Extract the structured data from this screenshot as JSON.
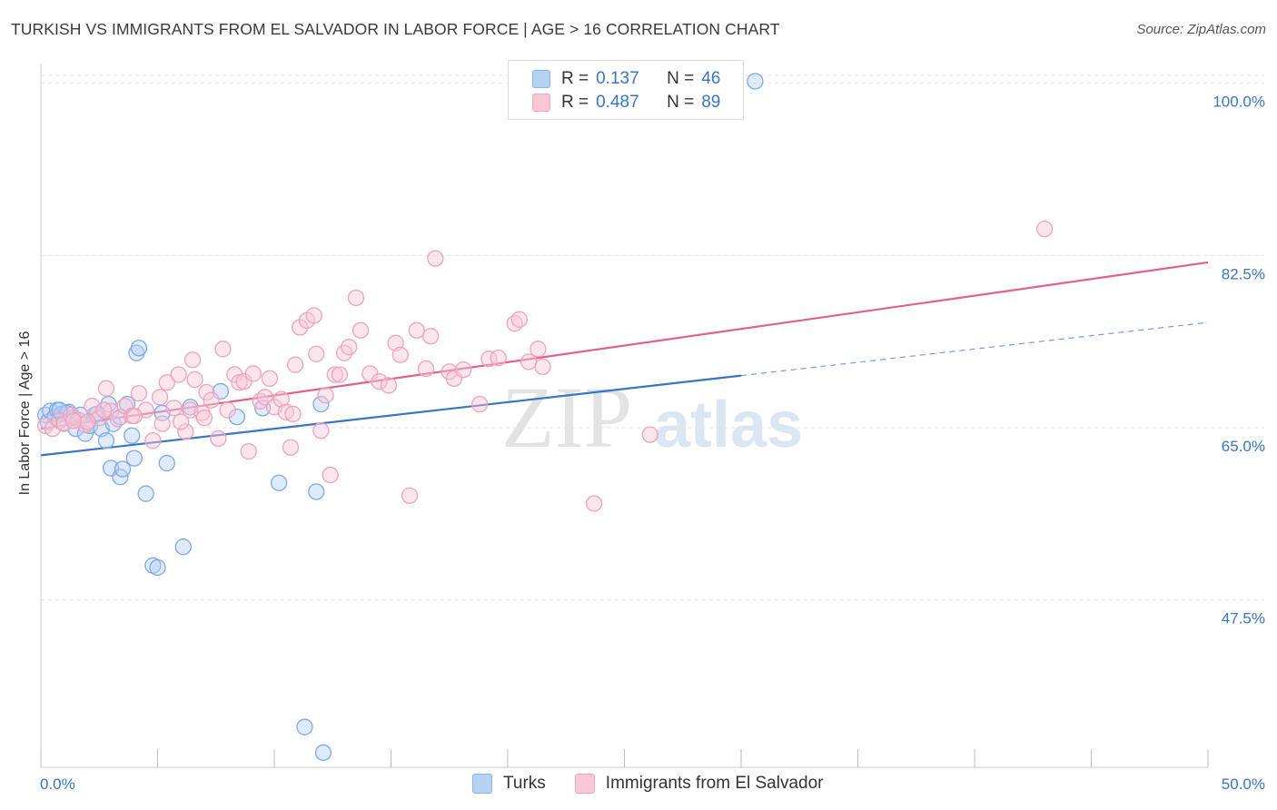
{
  "title": "TURKISH VS IMMIGRANTS FROM EL SALVADOR IN LABOR FORCE | AGE > 16 CORRELATION CHART",
  "source": "Source: ZipAtlas.com",
  "watermark": {
    "zip": "ZIP",
    "atlas": "atlas"
  },
  "legend": {
    "rows": [
      {
        "r_label": "R =",
        "r_value": "0.137",
        "n_label": "N =",
        "n_value": "46",
        "color": "#8ab4ea",
        "fill": "#b7d1f3"
      },
      {
        "r_label": "R =",
        "r_value": "0.487",
        "n_label": "N =",
        "n_value": "89",
        "color": "#f0a3bd",
        "fill": "#f8c8d7"
      }
    ]
  },
  "chart_data": {
    "type": "scatter",
    "title": "TURKISH VS IMMIGRANTS FROM EL SALVADOR IN LABOR FORCE | AGE > 16 CORRELATION CHART",
    "xlabel": "",
    "ylabel": "In Labor Force | Age > 16",
    "xlim": [
      0,
      50
    ],
    "ylim": [
      30.5,
      102
    ],
    "x_tick_labels": [
      "0.0%",
      "50.0%"
    ],
    "y_ticks": [
      47.5,
      65.0,
      82.5,
      100.0
    ],
    "y_tick_labels": [
      "47.5%",
      "65.0%",
      "82.5%",
      "100.0%"
    ],
    "grid": "horizontal dashed",
    "legend_position": "top-center",
    "series": [
      {
        "name": "Turks",
        "color": "#3a74c4",
        "fill": "#b7d1f3",
        "trend": {
          "x": [
            0,
            30
          ],
          "y": [
            62.2,
            70.3
          ],
          "dashed_to": [
            50,
            75.7
          ]
        },
        "points": [
          [
            0.2,
            66.3
          ],
          [
            0.3,
            65.6
          ],
          [
            0.4,
            66.7
          ],
          [
            0.6,
            66.1
          ],
          [
            0.7,
            66.8
          ],
          [
            0.9,
            66.4
          ],
          [
            1.0,
            65.5
          ],
          [
            1.2,
            66.6
          ],
          [
            1.4,
            66.0
          ],
          [
            1.5,
            64.9
          ],
          [
            1.7,
            66.3
          ],
          [
            1.9,
            64.4
          ],
          [
            2.1,
            65.2
          ],
          [
            2.3,
            66.3
          ],
          [
            2.6,
            64.9
          ],
          [
            2.8,
            63.7
          ],
          [
            2.9,
            67.4
          ],
          [
            3.1,
            65.4
          ],
          [
            3.4,
            66.1
          ],
          [
            3.7,
            67.4
          ],
          [
            3.9,
            64.2
          ],
          [
            4.0,
            61.9
          ],
          [
            4.1,
            72.6
          ],
          [
            4.2,
            73.1
          ],
          [
            4.5,
            58.3
          ],
          [
            4.8,
            51.0
          ],
          [
            5.0,
            50.8
          ],
          [
            5.2,
            66.5
          ],
          [
            5.4,
            61.4
          ],
          [
            6.1,
            52.9
          ],
          [
            6.4,
            67.1
          ],
          [
            7.7,
            68.7
          ],
          [
            8.4,
            66.1
          ],
          [
            9.5,
            67.0
          ],
          [
            10.2,
            59.4
          ],
          [
            11.3,
            34.6
          ],
          [
            11.8,
            58.5
          ],
          [
            12.0,
            67.4
          ],
          [
            12.1,
            32.0
          ],
          [
            3.0,
            60.9
          ],
          [
            3.4,
            60.0
          ],
          [
            3.5,
            60.8
          ],
          [
            30.6,
            100.2
          ],
          [
            1.1,
            66.5
          ],
          [
            2.4,
            66.4
          ],
          [
            0.8,
            66.8
          ]
        ]
      },
      {
        "name": "Immigrants from El Salvador",
        "color": "#e0608f",
        "fill": "#f8c8d7",
        "trend": {
          "x": [
            0,
            50
          ],
          "y": [
            64.9,
            81.8
          ]
        },
        "points": [
          [
            0.2,
            65.2
          ],
          [
            0.5,
            64.9
          ],
          [
            0.8,
            65.7
          ],
          [
            1.0,
            65.4
          ],
          [
            1.3,
            66.3
          ],
          [
            1.6,
            65.8
          ],
          [
            1.9,
            65.3
          ],
          [
            2.2,
            67.2
          ],
          [
            2.5,
            66.0
          ],
          [
            2.8,
            69.0
          ],
          [
            3.0,
            66.7
          ],
          [
            3.3,
            65.9
          ],
          [
            3.6,
            67.2
          ],
          [
            3.9,
            66.2
          ],
          [
            4.2,
            68.5
          ],
          [
            4.5,
            66.8
          ],
          [
            4.8,
            63.7
          ],
          [
            5.1,
            68.1
          ],
          [
            5.2,
            65.4
          ],
          [
            5.4,
            69.6
          ],
          [
            5.7,
            67.0
          ],
          [
            5.9,
            70.4
          ],
          [
            6.2,
            64.6
          ],
          [
            6.4,
            66.8
          ],
          [
            6.5,
            71.9
          ],
          [
            6.6,
            69.9
          ],
          [
            6.9,
            66.5
          ],
          [
            7.1,
            68.6
          ],
          [
            7.3,
            67.8
          ],
          [
            7.6,
            63.9
          ],
          [
            7.8,
            73.0
          ],
          [
            8.0,
            66.8
          ],
          [
            8.3,
            70.4
          ],
          [
            8.5,
            69.6
          ],
          [
            8.7,
            69.7
          ],
          [
            8.9,
            62.6
          ],
          [
            9.1,
            70.5
          ],
          [
            9.4,
            67.7
          ],
          [
            9.6,
            68.1
          ],
          [
            9.8,
            70.0
          ],
          [
            10.0,
            67.1
          ],
          [
            10.3,
            67.9
          ],
          [
            10.5,
            66.6
          ],
          [
            10.7,
            63.0
          ],
          [
            10.9,
            71.4
          ],
          [
            11.1,
            75.2
          ],
          [
            11.4,
            75.9
          ],
          [
            11.7,
            76.4
          ],
          [
            11.8,
            72.5
          ],
          [
            12.0,
            64.7
          ],
          [
            12.2,
            68.3
          ],
          [
            12.4,
            60.2
          ],
          [
            12.6,
            70.4
          ],
          [
            12.8,
            70.4
          ],
          [
            13.0,
            72.6
          ],
          [
            13.2,
            73.2
          ],
          [
            13.5,
            78.2
          ],
          [
            13.7,
            74.9
          ],
          [
            14.1,
            70.5
          ],
          [
            14.5,
            69.7
          ],
          [
            14.9,
            69.3
          ],
          [
            15.2,
            73.6
          ],
          [
            15.4,
            72.4
          ],
          [
            15.8,
            58.1
          ],
          [
            16.1,
            74.9
          ],
          [
            16.5,
            71.0
          ],
          [
            16.7,
            74.3
          ],
          [
            16.9,
            82.2
          ],
          [
            17.5,
            70.7
          ],
          [
            17.7,
            70.0
          ],
          [
            18.1,
            70.9
          ],
          [
            18.8,
            67.4
          ],
          [
            19.2,
            72.0
          ],
          [
            19.6,
            72.1
          ],
          [
            20.3,
            75.6
          ],
          [
            20.5,
            76.0
          ],
          [
            20.9,
            71.7
          ],
          [
            21.3,
            73.0
          ],
          [
            21.5,
            71.2
          ],
          [
            23.7,
            57.3
          ],
          [
            26.1,
            64.3
          ],
          [
            43.0,
            85.2
          ],
          [
            2.0,
            65.6
          ],
          [
            2.7,
            66.8
          ],
          [
            1.4,
            65.7
          ],
          [
            7.0,
            66.0
          ],
          [
            6.0,
            65.6
          ],
          [
            4.0,
            66.2
          ],
          [
            10.8,
            66.4
          ]
        ]
      }
    ]
  }
}
